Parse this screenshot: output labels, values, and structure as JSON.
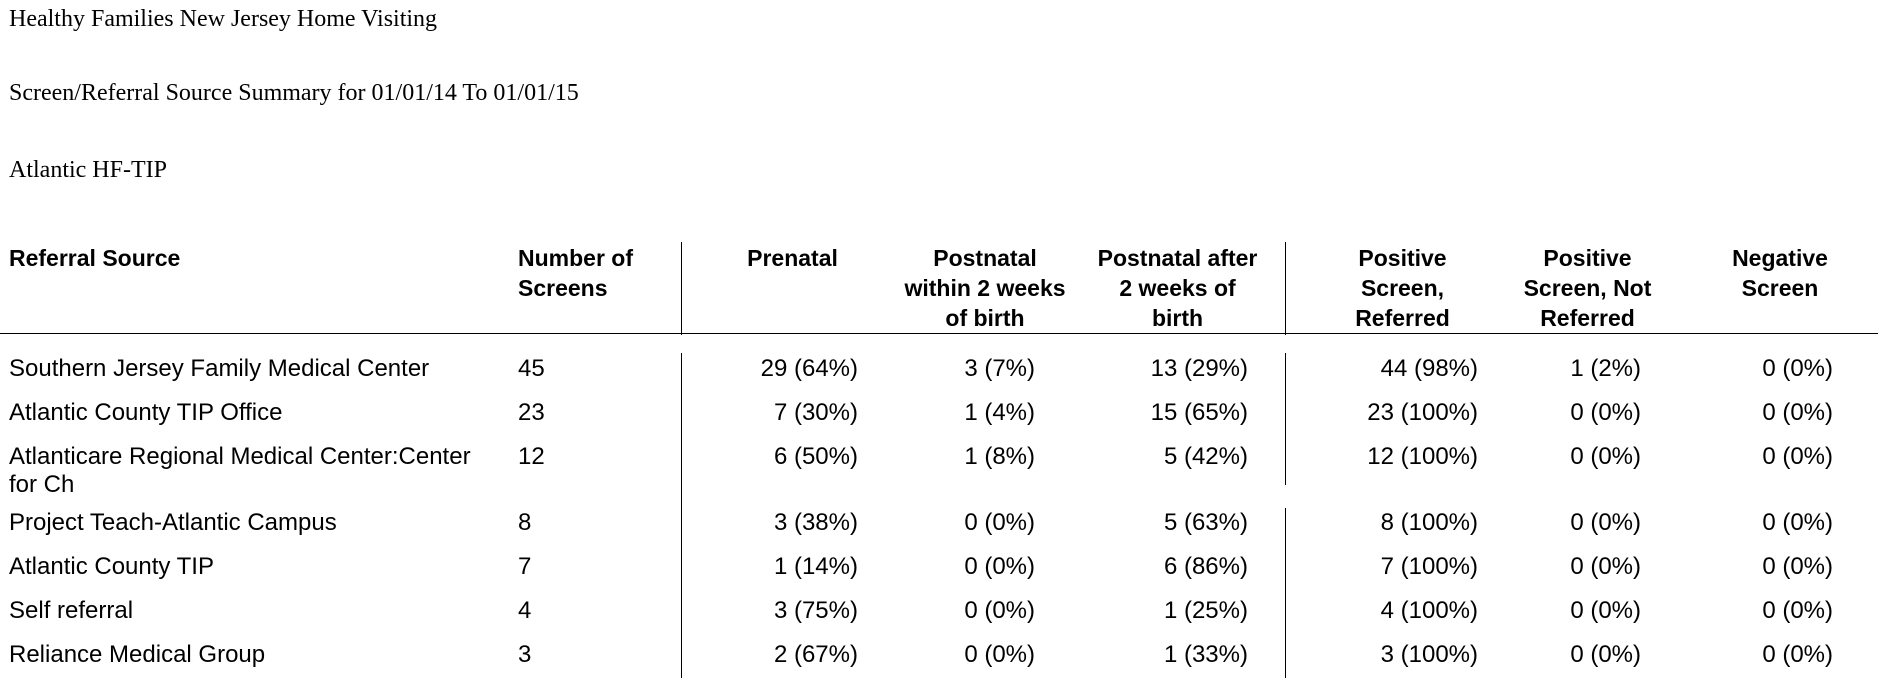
{
  "report": {
    "org_title": "Healthy Families New Jersey Home Visiting",
    "summary_title": "Screen/Referral Source Summary for 01/01/14 To 01/01/15",
    "site": "Atlantic HF-TIP"
  },
  "table": {
    "headers": {
      "source": "Referral Source",
      "screens_1": "Number of",
      "screens_2": "Screens",
      "prenatal": "Prenatal",
      "pn2_1": "Postnatal",
      "pn2_2": "within 2 weeks",
      "pn2_3": "of birth",
      "pna_1": "Postnatal after",
      "pna_2": "2 weeks of",
      "pna_3": "birth",
      "pr_1": "Positive",
      "pr_2": "Screen,",
      "pr_3": "Referred",
      "pnr_1": "Positive",
      "pnr_2": "Screen, Not",
      "pnr_3": "Referred",
      "neg_1": "Negative",
      "neg_2": "Screen"
    },
    "rows": [
      {
        "source": "Southern Jersey Family Medical Center",
        "source_2": "",
        "screens": "45",
        "prenatal": "29 (64%)",
        "postnatal_2w": "3 (7%)",
        "postnatal_after": "13 (29%)",
        "pos_referred": "44 (98%)",
        "pos_not_referred": "1 (2%)",
        "negative": "0 (0%)"
      },
      {
        "source": "Atlantic County TIP Office",
        "source_2": "",
        "screens": "23",
        "prenatal": "7 (30%)",
        "postnatal_2w": "1 (4%)",
        "postnatal_after": "15 (65%)",
        "pos_referred": "23 (100%)",
        "pos_not_referred": "0 (0%)",
        "negative": "0 (0%)"
      },
      {
        "source": "Atlanticare Regional Medical Center:Center",
        "source_2": "for Ch",
        "screens": "12",
        "prenatal": "6 (50%)",
        "postnatal_2w": "1 (8%)",
        "postnatal_after": "5 (42%)",
        "pos_referred": "12 (100%)",
        "pos_not_referred": "0 (0%)",
        "negative": "0 (0%)"
      },
      {
        "source": "Project Teach-Atlantic Campus",
        "source_2": "",
        "screens": "8",
        "prenatal": "3 (38%)",
        "postnatal_2w": "0 (0%)",
        "postnatal_after": "5 (63%)",
        "pos_referred": "8 (100%)",
        "pos_not_referred": "0 (0%)",
        "negative": "0 (0%)"
      },
      {
        "source": "Atlantic County TIP",
        "source_2": "",
        "screens": "7",
        "prenatal": "1 (14%)",
        "postnatal_2w": "0 (0%)",
        "postnatal_after": "6 (86%)",
        "pos_referred": "7 (100%)",
        "pos_not_referred": "0 (0%)",
        "negative": "0 (0%)"
      },
      {
        "source": "Self referral",
        "source_2": "",
        "screens": "4",
        "prenatal": "3 (75%)",
        "postnatal_2w": "0 (0%)",
        "postnatal_after": "1 (25%)",
        "pos_referred": "4 (100%)",
        "pos_not_referred": "0 (0%)",
        "negative": "0 (0%)"
      },
      {
        "source": "Reliance Medical Group",
        "source_2": "",
        "screens": "3",
        "prenatal": "2 (67%)",
        "postnatal_2w": "0 (0%)",
        "postnatal_after": "1 (33%)",
        "pos_referred": "3 (100%)",
        "pos_not_referred": "0 (0%)",
        "negative": "0 (0%)"
      }
    ]
  }
}
